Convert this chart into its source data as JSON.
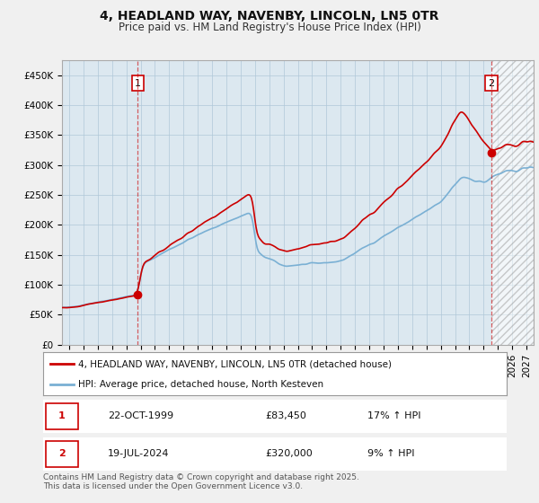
{
  "title": "4, HEADLAND WAY, NAVENBY, LINCOLN, LN5 0TR",
  "subtitle": "Price paid vs. HM Land Registry's House Price Index (HPI)",
  "ylabel_ticks": [
    "£0",
    "£50K",
    "£100K",
    "£150K",
    "£200K",
    "£250K",
    "£300K",
    "£350K",
    "£400K",
    "£450K"
  ],
  "ytick_values": [
    0,
    50000,
    100000,
    150000,
    200000,
    250000,
    300000,
    350000,
    400000,
    450000
  ],
  "ylim": [
    0,
    475000
  ],
  "xlim_start": 1994.5,
  "xlim_end": 2027.5,
  "background_color": "#f0f0f0",
  "plot_bg_color": "#dce8f0",
  "grid_color": "#b0c8d8",
  "line1_color": "#cc0000",
  "line2_color": "#7ab0d4",
  "marker1_label": "1",
  "marker2_label": "2",
  "marker1_x": 1999.81,
  "marker1_y": 83450,
  "marker2_x": 2024.54,
  "marker2_y": 320000,
  "vline1_x": 1999.81,
  "vline2_x": 2024.54,
  "hatch_start_x": 2024.54,
  "legend_line1": "4, HEADLAND WAY, NAVENBY, LINCOLN, LN5 0TR (detached house)",
  "legend_line2": "HPI: Average price, detached house, North Kesteven",
  "table_rows": [
    {
      "marker": "1",
      "date": "22-OCT-1999",
      "price": "£83,450",
      "hpi": "17% ↑ HPI"
    },
    {
      "marker": "2",
      "date": "19-JUL-2024",
      "price": "£320,000",
      "hpi": "9% ↑ HPI"
    }
  ],
  "footnote": "Contains HM Land Registry data © Crown copyright and database right 2025.\nThis data is licensed under the Open Government Licence v3.0.",
  "title_fontsize": 10,
  "subtitle_fontsize": 8.5,
  "tick_fontsize": 7.5,
  "legend_fontsize": 7.5,
  "table_fontsize": 8,
  "footnote_fontsize": 6.5
}
